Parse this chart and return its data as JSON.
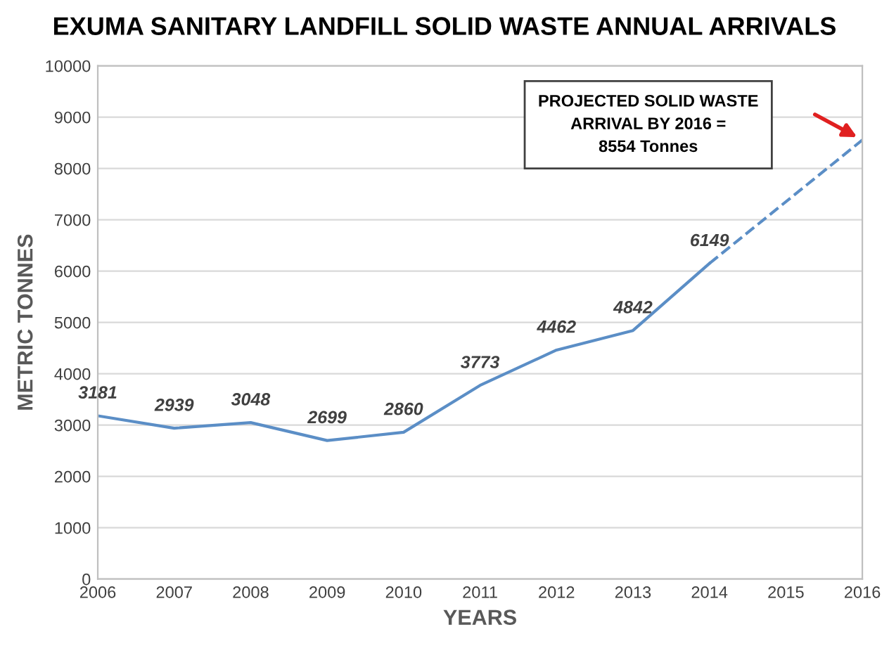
{
  "chart_data": {
    "type": "line",
    "title": "EXUMA SANITARY LANDFILL SOLID WASTE ANNUAL ARRIVALS",
    "xlabel": "YEARS",
    "ylabel": "METRIC TONNES",
    "xlim": [
      2006,
      2016
    ],
    "xticks": [
      2006,
      2007,
      2008,
      2009,
      2010,
      2011,
      2012,
      2013,
      2014,
      2015,
      2016
    ],
    "ylim": [
      0,
      10000
    ],
    "yticks": [
      0,
      1000,
      2000,
      3000,
      4000,
      5000,
      6000,
      7000,
      8000,
      9000,
      10000
    ],
    "grid": "y",
    "legend": false,
    "marker": "none",
    "series": [
      {
        "color": "#5b8ec6",
        "line_style": "solid",
        "x": [
          2006,
          2007,
          2008,
          2009,
          2010,
          2011,
          2012,
          2013,
          2014
        ],
        "values": [
          3181,
          2939,
          3048,
          2699,
          2860,
          3773,
          4462,
          4842,
          6149
        ],
        "value_labels": [
          "3181",
          "2939",
          "3048",
          "2699",
          "2860",
          "3773",
          "4462",
          "4842",
          "6149"
        ]
      },
      {
        "color": "#5b8ec6",
        "line_style": "dashed",
        "x": [
          2014,
          2016
        ],
        "values": [
          6149,
          8554
        ]
      }
    ],
    "annotations": [
      "PROJECTED SOLID WASTE\nARRIVAL BY 2016 =\n8554 Tonnes"
    ]
  }
}
